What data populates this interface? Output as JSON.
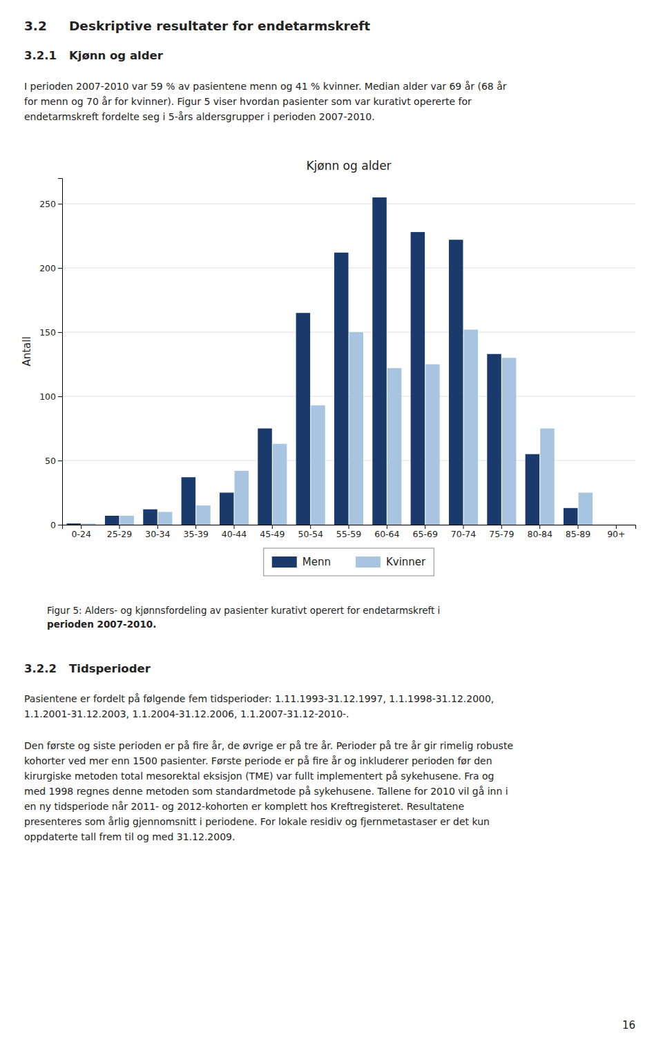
{
  "chart_data": {
    "type": "bar",
    "title": "Kjønn og alder",
    "ylabel": "Antall",
    "categories": [
      "0-24",
      "25-29",
      "30-34",
      "35-39",
      "40-44",
      "45-49",
      "50-54",
      "55-59",
      "60-64",
      "65-69",
      "70-74",
      "75-79",
      "80-84",
      "85-89",
      "90+"
    ],
    "series": [
      {
        "name": "Menn",
        "color": "#1a3a6b",
        "values": [
          1,
          7,
          12,
          37,
          25,
          75,
          165,
          212,
          255,
          228,
          222,
          133,
          55,
          13,
          0
        ]
      },
      {
        "name": "Kvinner",
        "color": "#a8c4e0",
        "values": [
          1,
          7,
          10,
          15,
          42,
          63,
          93,
          150,
          122,
          125,
          152,
          130,
          75,
          25,
          0
        ]
      }
    ],
    "ylim": [
      0,
      270
    ],
    "yticks": [
      0,
      50,
      100,
      150,
      200,
      250
    ],
    "grid": true,
    "legend": "bottom"
  },
  "headings": [
    {
      "number": "3.2",
      "text": "Deskriptive resultater for endetarmskreft"
    },
    {
      "number": "3.2.1",
      "text": "Kjønn og alder"
    },
    {
      "number": "3.2.2",
      "text": "Tidsperioder"
    }
  ],
  "paragraphs": [
    [
      "I perioden 2007-2010 var 59 % av pasientene menn og 41 % kvinner. Median alder var 69 år (68 år",
      "for menn og 70 år for kvinner). Figur 5 viser hvordan pasienter som var kurativt opererte for",
      "endetarmskreft fordelte seg i 5-års aldersgrupper i perioden 2007-2010."
    ],
    [
      "Pasientene er fordelt på følgende fem tidsperioder: 1.11.1993-31.12.1997, 1.1.1998-31.12.2000,",
      "1.1.2001-31.12.2003, 1.1.2004-31.12.2006, 1.1.2007-31.12-2010-."
    ],
    [
      "Den første og siste perioden er på fire år, de øvrige er på tre år. Perioder på tre år gir rimelig robuste",
      "kohorter ved mer enn 1500 pasienter. Første periode er på fire år og inkluderer perioden før den",
      "kirurgiske metoden total mesorektal eksisjon (TME) var fullt implementert på sykehusene.  Fra og",
      "med 1998 regnes denne metoden som standardmetode på sykehusene. Tallene for 2010 vil gå inn i",
      "en ny tidsperiode når 2011- og 2012-kohorten er komplett hos Kreftregisteret. Resultatene",
      "presenteres som årlig gjennomsnitt i periodene. For lokale residiv og fjernmetastaser er det kun",
      "oppdaterte tall frem til og med 31.12.2009."
    ]
  ],
  "caption": [
    "Figur 5: Alders- og kjønnsfordeling av pasienter kurativt operert for endetarmskreft i",
    "perioden 2007-2010."
  ],
  "page_number": "16"
}
